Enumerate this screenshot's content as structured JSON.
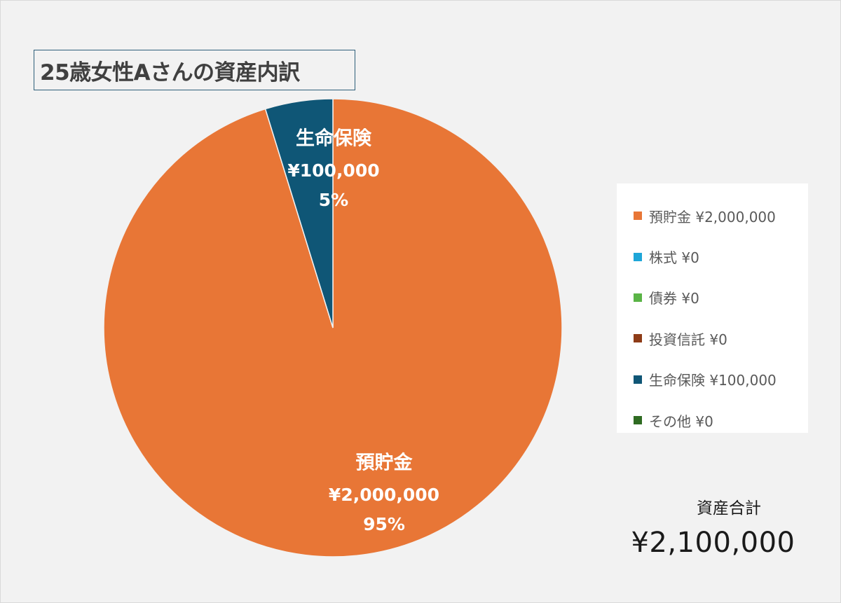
{
  "chart_data": {
    "type": "pie",
    "title": "25歳女性Aさんの資産内訳",
    "categories": [
      "預貯金",
      "株式",
      "債券",
      "投資信託",
      "生命保険",
      "その他"
    ],
    "values": [
      2000000,
      0,
      0,
      0,
      100000,
      0
    ],
    "value_labels": [
      "¥2,000,000",
      "¥0",
      "¥0",
      "¥0",
      "¥100,000",
      "¥0"
    ],
    "percent_labels": [
      "95%",
      "",
      "",
      "",
      "5%",
      ""
    ],
    "colors": [
      "#e87636",
      "#1ea6d8",
      "#5ab446",
      "#8e3c17",
      "#0f5676",
      "#2f6b22"
    ],
    "legend_entries": [
      "預貯金 ¥2,000,000",
      "株式 ¥0",
      "債券 ¥0",
      "投資信託 ¥0",
      "生命保険 ¥100,000",
      "その他 ¥0"
    ],
    "legend_position": "right",
    "start_angle_deg": -17.1,
    "direction": "clockwise-from-top"
  },
  "total": {
    "label": "資産合計",
    "value": "¥2,100,000"
  }
}
